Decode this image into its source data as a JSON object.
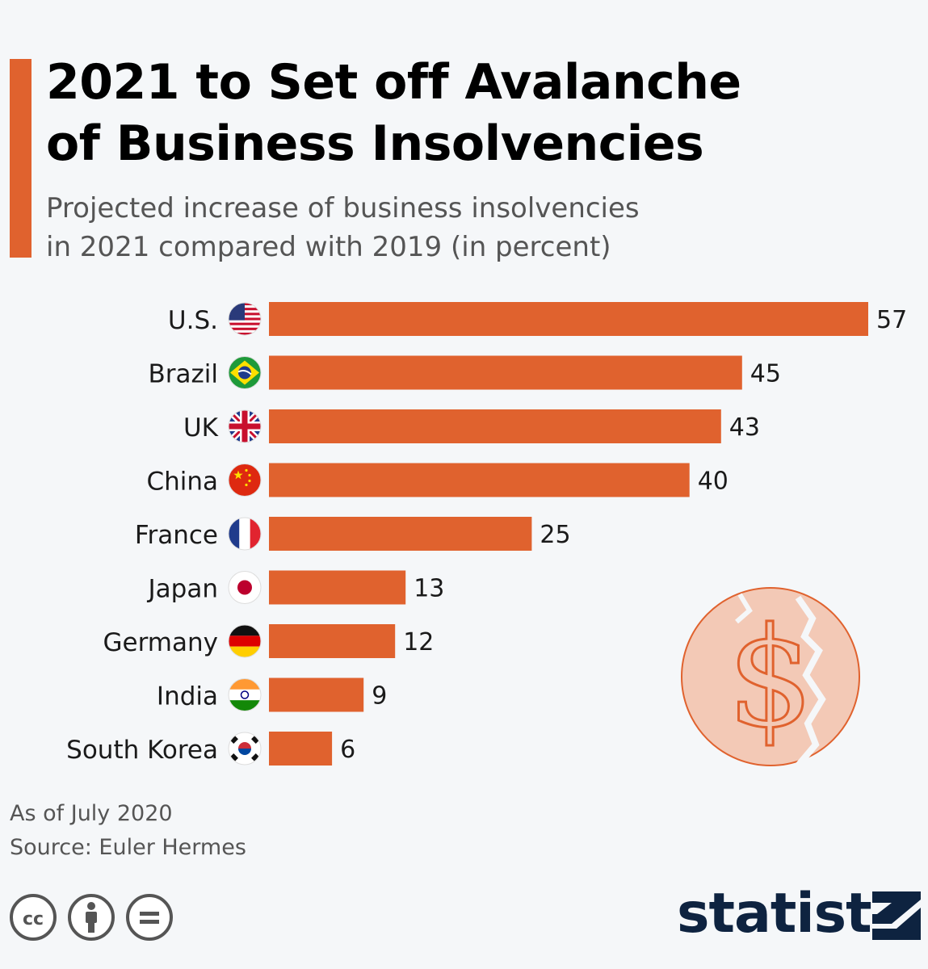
{
  "header": {
    "title_line1": "2021 to Set off Avalanche",
    "title_line2": "of Business Insolvencies",
    "subtitle_line1": "Projected increase of business insolvencies",
    "subtitle_line2": "in 2021 compared with 2019 (in percent)"
  },
  "colors": {
    "accent": "#e0622e",
    "brand": "#0e2340",
    "background": "#f5f7f9"
  },
  "chart_data": {
    "type": "bar",
    "orientation": "horizontal",
    "categories": [
      "U.S.",
      "Brazil",
      "UK",
      "China",
      "France",
      "Japan",
      "Germany",
      "India",
      "South Korea"
    ],
    "values": [
      57,
      45,
      43,
      40,
      25,
      13,
      12,
      9,
      6
    ],
    "flags": [
      "us-flag-icon",
      "brazil-flag-icon",
      "uk-flag-icon",
      "china-flag-icon",
      "france-flag-icon",
      "japan-flag-icon",
      "germany-flag-icon",
      "india-flag-icon",
      "south-korea-flag-icon"
    ],
    "xlim": [
      0,
      57
    ],
    "grid": false,
    "data_labels": true
  },
  "footer": {
    "as_of": "As of July 2020",
    "source": "Source: Euler Hermes",
    "brand": "statista"
  },
  "icons": [
    "cc-icon",
    "attribution-icon",
    "no-derivatives-icon",
    "broken-dollar-coin-icon",
    "statista-logo-icon"
  ]
}
